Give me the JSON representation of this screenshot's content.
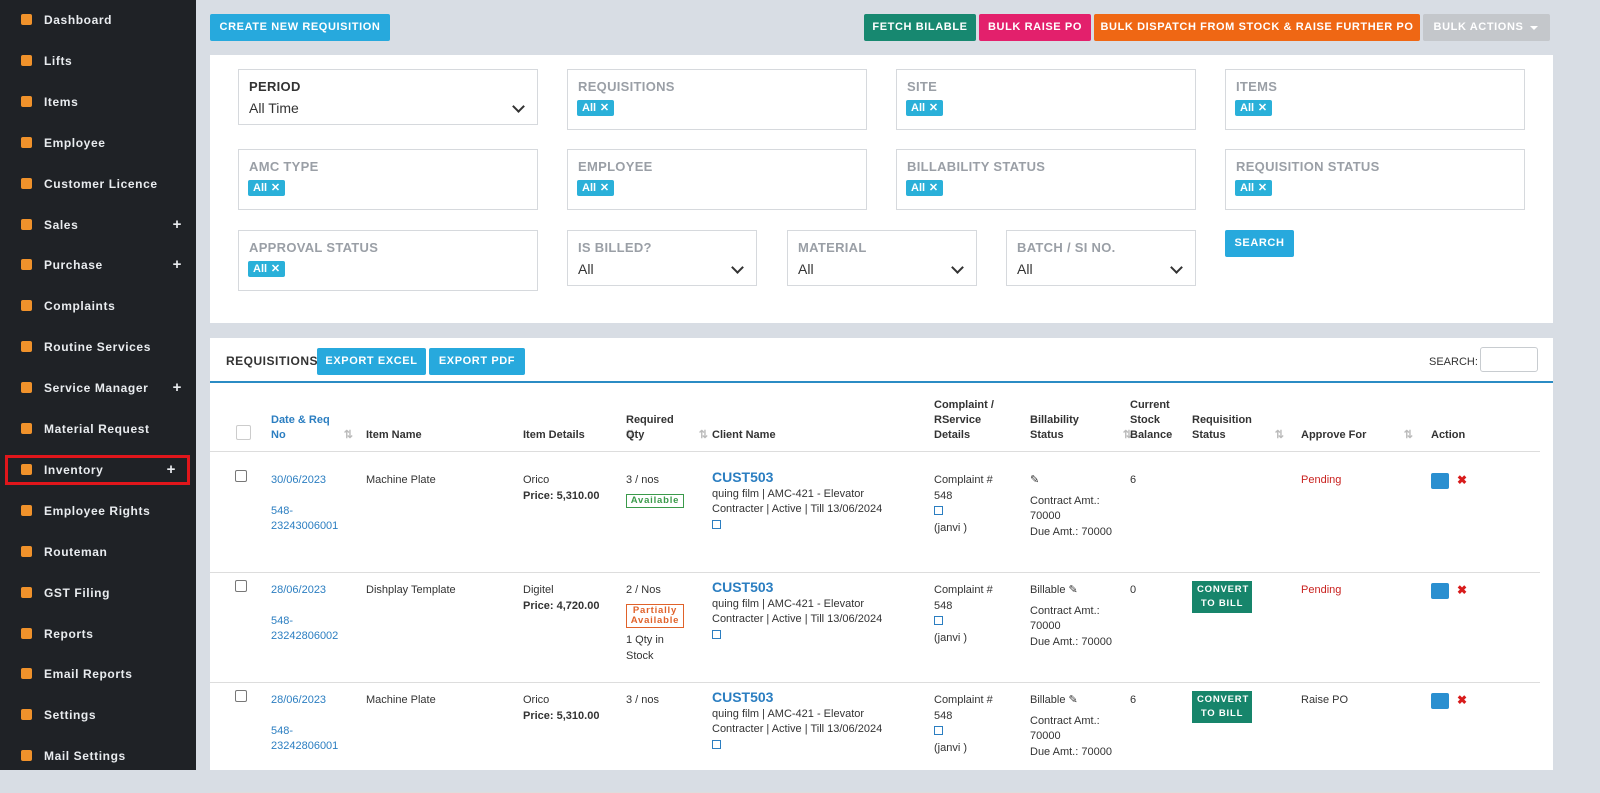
{
  "sidebar": {
    "items": [
      {
        "label": "Dashboard"
      },
      {
        "label": "Lifts"
      },
      {
        "label": "Items"
      },
      {
        "label": "Employee"
      },
      {
        "label": "Customer Licence"
      },
      {
        "label": "Sales",
        "expand": "+"
      },
      {
        "label": "Purchase",
        "expand": "+"
      },
      {
        "label": "Complaints"
      },
      {
        "label": "Routine Services"
      },
      {
        "label": "Service Manager",
        "expand": "+"
      },
      {
        "label": "Material Request"
      },
      {
        "label": "Inventory",
        "expand": "+",
        "active": true
      },
      {
        "label": "Employee Rights"
      },
      {
        "label": "Routeman"
      },
      {
        "label": "GST Filing"
      },
      {
        "label": "Reports"
      },
      {
        "label": "Email Reports"
      },
      {
        "label": "Settings"
      },
      {
        "label": "Mail Settings"
      }
    ]
  },
  "toolbar": {
    "create": "CREATE NEW REQUISITION",
    "fetch": "FETCH BILABLE",
    "bulk_po": "BULK RAISE PO",
    "bulk_dispatch": "BULK DISPATCH FROM STOCK & RAISE FURTHER PO",
    "bulk_actions": "BULK ACTIONS"
  },
  "filters": [
    {
      "label": "PERIOD",
      "value": "All Time",
      "kind": "select"
    },
    {
      "label": "REQUISITIONS",
      "value": "All",
      "kind": "tag"
    },
    {
      "label": "SITE",
      "value": "All",
      "kind": "tag"
    },
    {
      "label": "ITEMS",
      "value": "All",
      "kind": "tag"
    },
    {
      "label": "AMC TYPE",
      "value": "All",
      "kind": "tag"
    },
    {
      "label": "EMPLOYEE",
      "value": "All",
      "kind": "tag"
    },
    {
      "label": "BILLABILITY STATUS",
      "value": "All",
      "kind": "tag"
    },
    {
      "label": "REQUISITION STATUS",
      "value": "All",
      "kind": "tag"
    },
    {
      "label": "APPROVAL STATUS",
      "value": "All",
      "kind": "tag"
    },
    {
      "label": "IS BILLED?",
      "value": "All",
      "kind": "select"
    },
    {
      "label": "MATERIAL",
      "value": "All",
      "kind": "select"
    },
    {
      "label": "BATCH / SI NO.",
      "value": "All",
      "kind": "select"
    }
  ],
  "search_button": "SEARCH",
  "table": {
    "title": "REQUISITIONS",
    "export_excel": "EXPORT EXCEL",
    "export_pdf": "EXPORT PDF",
    "search_label": "SEARCH:",
    "columns": [
      "Date & Req No",
      "Item Name",
      "Item Details",
      "Required Qty",
      "Client Name",
      "Complaint / RService Details",
      "Billability Status",
      "Current Stock Balance",
      "Requisition Status",
      "Approve For",
      "Action"
    ],
    "rows": [
      {
        "date": "30/06/2023",
        "req_no": "548-23243006001",
        "item_name": "Machine Plate",
        "vendor": "Orico",
        "price": "Price: 5,310.00",
        "qty": "3 / nos",
        "availability": "Available",
        "client": "CUST503",
        "client_detail": "quing film | AMC-421 - Elevator Contracter | Active | Till 13/06/2024",
        "complaint": "Complaint # 548",
        "complaint_by": "(janvi )",
        "contract": "Contract Amt.: 70000",
        "due": "Due Amt.: 70000",
        "stock": "6",
        "approve": "Pending"
      },
      {
        "date": "28/06/2023",
        "req_no": "548-23242806002",
        "item_name": "Dishplay Template",
        "vendor": "Digitel",
        "price": "Price: 4,720.00",
        "qty": "2 / Nos",
        "availability": "Partially Available",
        "stock_note": "1 Qty in Stock",
        "client": "CUST503",
        "client_detail": "quing film | AMC-421 - Elevator Contracter | Active | Till 13/06/2024",
        "complaint": "Complaint # 548",
        "complaint_by": "(janvi )",
        "billability": "Billable",
        "contract": "Contract Amt.: 70000",
        "due": "Due Amt.: 70000",
        "stock": "0",
        "status": "CONVERT TO BILL",
        "approve": "Pending"
      },
      {
        "date": "28/06/2023",
        "req_no": "548-23242806001",
        "item_name": "Machine Plate",
        "vendor": "Orico",
        "price": "Price: 5,310.00",
        "qty": "3 / nos",
        "client": "CUST503",
        "client_detail": "quing film | AMC-421 - Elevator Contracter | Active | Till 13/06/2024",
        "complaint": "Complaint # 548",
        "complaint_by": "(janvi )",
        "billability": "Billable",
        "contract": "Contract Amt.: 70000",
        "due": "Due Amt.: 70000",
        "stock": "6",
        "status": "CONVERT TO BILL",
        "approve": "Raise PO"
      }
    ]
  }
}
